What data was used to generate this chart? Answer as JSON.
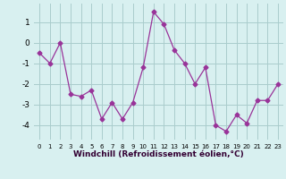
{
  "hours": [
    0,
    1,
    2,
    3,
    4,
    5,
    6,
    7,
    8,
    9,
    10,
    11,
    12,
    13,
    14,
    15,
    16,
    17,
    18,
    19,
    20,
    21,
    22,
    23
  ],
  "values": [
    -0.5,
    -1.0,
    0.0,
    -2.5,
    -2.6,
    -2.3,
    -3.7,
    -2.9,
    -3.7,
    -2.9,
    -1.2,
    1.5,
    0.9,
    -0.35,
    -1.0,
    -2.0,
    -1.2,
    -4.0,
    -4.3,
    -3.5,
    -3.9,
    -2.8,
    -2.8,
    -2.0
  ],
  "line_color": "#993399",
  "marker": "D",
  "bg_color": "#d8f0f0",
  "grid_color": "#aacccc",
  "xlabel": "Windchill (Refroidissement éolien,°C)",
  "xlabel_color": "#330033",
  "tick_color": "#000000",
  "ylim": [
    -4.7,
    1.9
  ],
  "yticks": [
    -4,
    -3,
    -2,
    -1,
    0,
    1
  ],
  "xticks": [
    0,
    1,
    2,
    3,
    4,
    5,
    6,
    7,
    8,
    9,
    10,
    11,
    12,
    13,
    14,
    15,
    16,
    17,
    18,
    19,
    20,
    21,
    22,
    23
  ]
}
